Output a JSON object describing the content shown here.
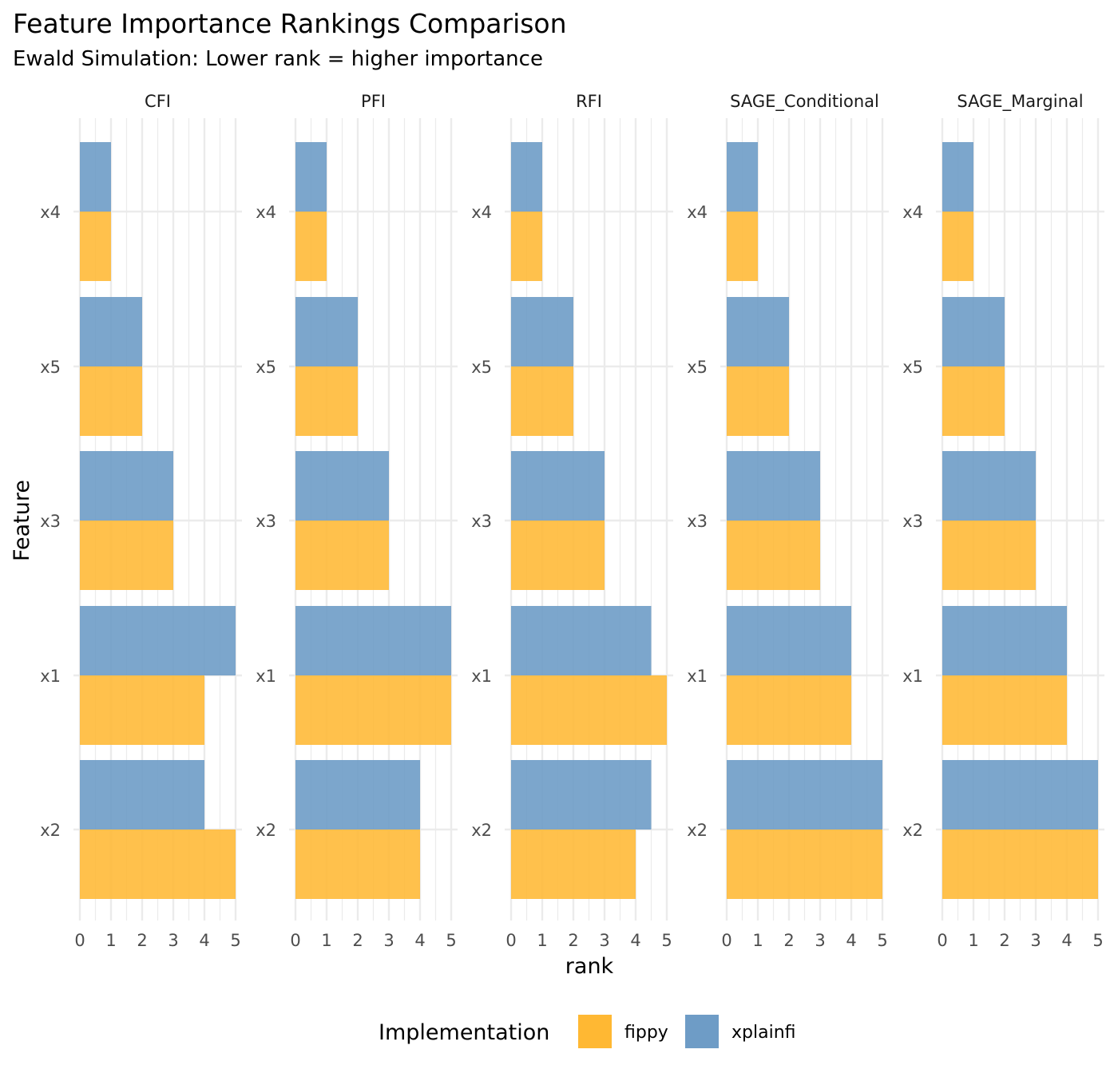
{
  "chart_data": {
    "type": "bar",
    "orientation": "horizontal",
    "title": "Feature Importance Rankings Comparison",
    "subtitle": "Ewald Simulation: Lower rank = higher importance",
    "xlabel": "rank",
    "ylabel": "Feature",
    "xlim": [
      0,
      5
    ],
    "x_ticks": [
      "0",
      "1",
      "2",
      "3",
      "4",
      "5"
    ],
    "categories": [
      "x4",
      "x5",
      "x3",
      "x1",
      "x2"
    ],
    "grid": true,
    "legend": {
      "title": "Implementation",
      "position": "bottom",
      "items": [
        {
          "name": "fippy",
          "color": "#FFB833"
        },
        {
          "name": "xplainfi",
          "color": "#6E9CC6"
        }
      ]
    },
    "facets": [
      {
        "name": "CFI",
        "series": [
          {
            "name": "fippy",
            "values": [
              1,
              2,
              3,
              4,
              5
            ]
          },
          {
            "name": "xplainfi",
            "values": [
              1,
              2,
              3,
              5,
              4
            ]
          }
        ]
      },
      {
        "name": "PFI",
        "series": [
          {
            "name": "fippy",
            "values": [
              1,
              2,
              3,
              5,
              4
            ]
          },
          {
            "name": "xplainfi",
            "values": [
              1,
              2,
              3,
              5,
              4
            ]
          }
        ]
      },
      {
        "name": "RFI",
        "series": [
          {
            "name": "fippy",
            "values": [
              1,
              2,
              3,
              5,
              4
            ]
          },
          {
            "name": "xplainfi",
            "values": [
              1,
              2,
              3,
              4.5,
              4.5
            ]
          }
        ]
      },
      {
        "name": "SAGE_Conditional",
        "series": [
          {
            "name": "fippy",
            "values": [
              1,
              2,
              3,
              4,
              5
            ]
          },
          {
            "name": "xplainfi",
            "values": [
              1,
              2,
              3,
              4,
              5
            ]
          }
        ]
      },
      {
        "name": "SAGE_Marginal",
        "series": [
          {
            "name": "fippy",
            "values": [
              1,
              2,
              3,
              4,
              5
            ]
          },
          {
            "name": "xplainfi",
            "values": [
              1,
              2,
              3,
              4,
              5
            ]
          }
        ]
      }
    ]
  }
}
